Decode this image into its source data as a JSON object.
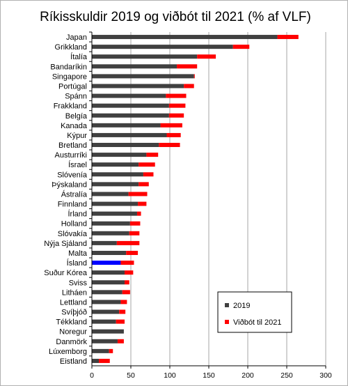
{
  "chart_data": {
    "type": "bar",
    "orientation": "horizontal",
    "stacked": true,
    "title": "Ríkisskuldir 2019 og viðbót til 2021 (% af VLF)",
    "categories": [
      "Japan",
      "Grikkland",
      "Ítalía",
      "Bandaríkin",
      "Singapore",
      "Portúgal",
      "Spánn",
      "Frakkland",
      "Belgía",
      "Kanada",
      "Kýpur",
      "Bretland",
      "Austurríki",
      "Ísrael",
      "Slóvenía",
      "Þýskaland",
      "Ástralía",
      "Finnland",
      "Írland",
      "Holland",
      "Slóvakía",
      "Nýja Sjáland",
      "Malta",
      "Ísland",
      "Suður Kórea",
      "Sviss",
      "Litháen",
      "Lettland",
      "Svíþjóð",
      "Tékkland",
      "Noregur",
      "Danmörk",
      "Lúxemborg",
      "Eistland"
    ],
    "series": [
      {
        "name": "2019",
        "color": "#404040",
        "values": [
          238,
          181,
          135,
          109,
          131,
          118,
          95,
          99,
          99,
          88,
          96,
          86,
          70,
          60,
          66,
          60,
          47,
          59,
          58,
          49,
          48,
          32,
          44,
          37,
          42,
          42,
          39,
          37,
          35,
          31,
          41,
          33,
          22,
          9
        ]
      },
      {
        "name": "Viðbót til 2021",
        "color": "#ff0000",
        "values": [
          27,
          21,
          24,
          26,
          1,
          13,
          26,
          21,
          19,
          28,
          18,
          27,
          15,
          21,
          13,
          13,
          24,
          11,
          5,
          13,
          13,
          29,
          15,
          17,
          11,
          6,
          10,
          8,
          8,
          11,
          0,
          8,
          5,
          14
        ]
      }
    ],
    "highlight": {
      "category": "Ísland",
      "series": "2019",
      "color": "#0000ff"
    },
    "xlim": [
      0,
      300
    ],
    "xticks": [
      0,
      50,
      100,
      150,
      200,
      250,
      300
    ],
    "grid": true,
    "legend_position": "bottom-right"
  }
}
